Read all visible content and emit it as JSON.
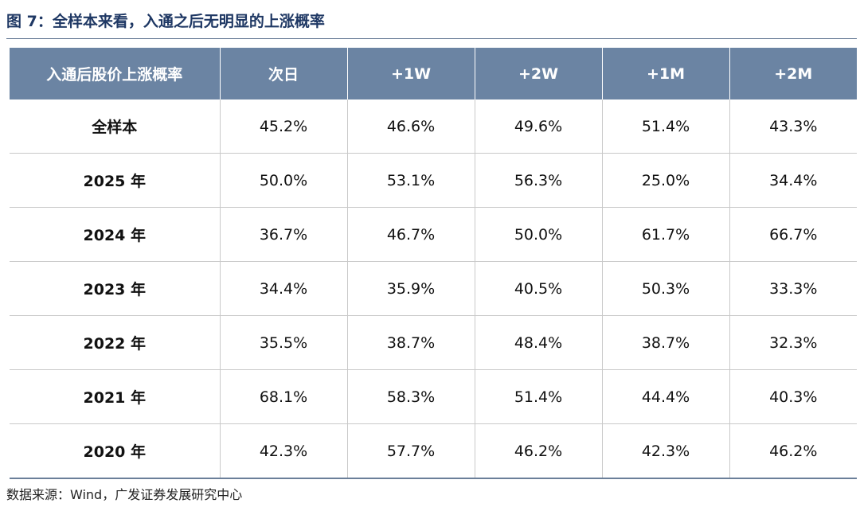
{
  "figure": {
    "title": "图 7：全样本来看，入通之后无明显的上涨概率",
    "source": "数据来源：Wind，广发证券发展研究中心"
  },
  "chart_data": {
    "type": "table",
    "title": "图 7：全样本来看，入通之后无明显的上涨概率",
    "columns": [
      "入通后股价上涨概率",
      "次日",
      "+1W",
      "+2W",
      "+1M",
      "+2M"
    ],
    "rows": [
      {
        "label": "全样本",
        "values": [
          "45.2%",
          "46.6%",
          "49.6%",
          "51.4%",
          "43.3%"
        ]
      },
      {
        "label": "2025 年",
        "values": [
          "50.0%",
          "53.1%",
          "56.3%",
          "25.0%",
          "34.4%"
        ]
      },
      {
        "label": "2024 年",
        "values": [
          "36.7%",
          "46.7%",
          "50.0%",
          "61.7%",
          "66.7%"
        ]
      },
      {
        "label": "2023 年",
        "values": [
          "34.4%",
          "35.9%",
          "40.5%",
          "50.3%",
          "33.3%"
        ]
      },
      {
        "label": "2022 年",
        "values": [
          "35.5%",
          "38.7%",
          "48.4%",
          "38.7%",
          "32.3%"
        ]
      },
      {
        "label": "2021 年",
        "values": [
          "68.1%",
          "58.3%",
          "51.4%",
          "44.4%",
          "40.3%"
        ]
      },
      {
        "label": "2020 年",
        "values": [
          "42.3%",
          "57.7%",
          "46.2%",
          "42.3%",
          "46.2%"
        ]
      }
    ],
    "header_color": "#6b84a3",
    "title_color": "#1f3864"
  }
}
